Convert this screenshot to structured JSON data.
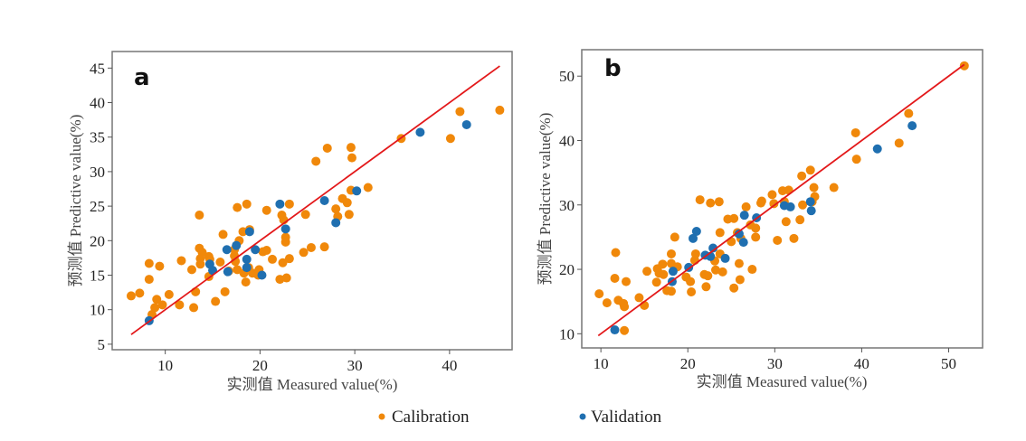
{
  "colors": {
    "calibration": "#f0880a",
    "validation": "#1f6fb0",
    "fit_line": "#e3181a",
    "frame": "#777777"
  },
  "legend": {
    "items": [
      {
        "label": "Calibration",
        "color": "#f0880a"
      },
      {
        "label": "Validation",
        "color": "#1f6fb0"
      }
    ]
  },
  "chart_data": [
    {
      "type": "scatter",
      "panel": "a",
      "xlabel": "实测值 Measured value(%)",
      "ylabel": "预测值 Predictive value(%)",
      "xlim": [
        4.4,
        46.6
      ],
      "ylim": [
        4.2,
        47.4
      ],
      "xticks": [
        10,
        20,
        30,
        40
      ],
      "yticks": [
        5,
        10,
        15,
        20,
        25,
        30,
        35,
        40,
        45
      ],
      "grid": false,
      "fit_line": [
        [
          6.4,
          6.4
        ],
        [
          45.3,
          45.3
        ]
      ],
      "series": [
        {
          "name": "Calibration",
          "points": [
            [
              6.4,
              12.0
            ],
            [
              7.3,
              12.4
            ],
            [
              8.3,
              16.7
            ],
            [
              8.3,
              14.4
            ],
            [
              9.4,
              16.3
            ],
            [
              9.1,
              11.5
            ],
            [
              8.9,
              10.3
            ],
            [
              9.7,
              10.7
            ],
            [
              8.6,
              9.3
            ],
            [
              10.4,
              12.2
            ],
            [
              11.5,
              10.7
            ],
            [
              11.7,
              17.1
            ],
            [
              12.8,
              15.8
            ],
            [
              13.2,
              12.6
            ],
            [
              13.0,
              10.3
            ],
            [
              13.6,
              23.7
            ],
            [
              13.6,
              18.9
            ],
            [
              13.7,
              17.4
            ],
            [
              13.7,
              16.6
            ],
            [
              13.9,
              18.3
            ],
            [
              14.6,
              17.7
            ],
            [
              14.7,
              17.3
            ],
            [
              14.6,
              14.8
            ],
            [
              15.3,
              11.2
            ],
            [
              15.8,
              16.9
            ],
            [
              16.1,
              20.9
            ],
            [
              16.3,
              12.6
            ],
            [
              16.7,
              15.6
            ],
            [
              17.3,
              18.7
            ],
            [
              17.3,
              17.8
            ],
            [
              17.4,
              17.0
            ],
            [
              17.6,
              24.8
            ],
            [
              17.6,
              15.8
            ],
            [
              17.8,
              20.0
            ],
            [
              18.2,
              21.3
            ],
            [
              18.3,
              15.3
            ],
            [
              18.6,
              25.3
            ],
            [
              18.5,
              14.0
            ],
            [
              18.9,
              21.6
            ],
            [
              18.8,
              16.1
            ],
            [
              19.2,
              15.3
            ],
            [
              19.8,
              15.0
            ],
            [
              19.9,
              15.8
            ],
            [
              20.3,
              18.4
            ],
            [
              20.7,
              18.6
            ],
            [
              20.7,
              24.4
            ],
            [
              21.3,
              17.3
            ],
            [
              22.1,
              14.4
            ],
            [
              22.3,
              23.7
            ],
            [
              22.4,
              16.8
            ],
            [
              22.5,
              23.0
            ],
            [
              22.7,
              20.5
            ],
            [
              22.7,
              19.8
            ],
            [
              22.8,
              14.6
            ],
            [
              23.1,
              25.3
            ],
            [
              23.1,
              17.4
            ],
            [
              24.6,
              18.3
            ],
            [
              24.8,
              23.8
            ],
            [
              25.4,
              19.0
            ],
            [
              25.9,
              31.5
            ],
            [
              26.8,
              19.1
            ],
            [
              27.1,
              33.4
            ],
            [
              28.0,
              24.6
            ],
            [
              28.2,
              23.5
            ],
            [
              28.7,
              26.1
            ],
            [
              29.2,
              25.5
            ],
            [
              29.4,
              23.8
            ],
            [
              29.6,
              27.3
            ],
            [
              29.6,
              33.5
            ],
            [
              29.7,
              32.0
            ],
            [
              31.4,
              27.7
            ],
            [
              34.9,
              34.8
            ],
            [
              40.1,
              34.8
            ],
            [
              41.1,
              38.7
            ],
            [
              45.3,
              38.9
            ]
          ]
        },
        {
          "name": "Validation",
          "points": [
            [
              8.3,
              8.4
            ],
            [
              14.7,
              16.6
            ],
            [
              15.0,
              15.7
            ],
            [
              16.5,
              18.7
            ],
            [
              16.6,
              15.5
            ],
            [
              17.5,
              19.3
            ],
            [
              18.6,
              17.3
            ],
            [
              18.6,
              16.1
            ],
            [
              18.9,
              21.3
            ],
            [
              19.5,
              18.7
            ],
            [
              20.2,
              15.0
            ],
            [
              22.1,
              25.3
            ],
            [
              22.7,
              21.7
            ],
            [
              26.8,
              25.8
            ],
            [
              28.0,
              22.6
            ],
            [
              30.2,
              27.2
            ],
            [
              36.9,
              35.7
            ],
            [
              41.8,
              36.8
            ]
          ]
        }
      ]
    },
    {
      "type": "scatter",
      "panel": "b",
      "xlabel": "实测值 Measured value(%)",
      "ylabel": "预测值 Predictive value(%)",
      "xlim": [
        7.8,
        53.9
      ],
      "ylim": [
        7.8,
        54.1
      ],
      "xticks": [
        10,
        20,
        30,
        40,
        50
      ],
      "yticks": [
        10,
        20,
        30,
        40,
        50
      ],
      "grid": false,
      "fit_line": [
        [
          9.7,
          9.7
        ],
        [
          51.8,
          51.8
        ]
      ],
      "series": [
        {
          "name": "Calibration",
          "points": [
            [
              9.8,
              16.2
            ],
            [
              10.7,
              14.8
            ],
            [
              11.7,
              22.6
            ],
            [
              11.6,
              18.6
            ],
            [
              12.0,
              15.2
            ],
            [
              12.6,
              14.7
            ],
            [
              12.7,
              14.2
            ],
            [
              12.9,
              18.1
            ],
            [
              12.7,
              10.5
            ],
            [
              14.4,
              15.6
            ],
            [
              15.0,
              14.4
            ],
            [
              15.3,
              19.7
            ],
            [
              16.4,
              18.0
            ],
            [
              16.5,
              20.1
            ],
            [
              16.7,
              19.4
            ],
            [
              17.1,
              20.8
            ],
            [
              17.2,
              19.2
            ],
            [
              17.6,
              16.7
            ],
            [
              18.1,
              22.4
            ],
            [
              18.1,
              20.9
            ],
            [
              18.1,
              16.6
            ],
            [
              18.5,
              25.0
            ],
            [
              18.8,
              20.4
            ],
            [
              19.8,
              18.8
            ],
            [
              20.3,
              18.1
            ],
            [
              20.4,
              16.5
            ],
            [
              20.8,
              21.4
            ],
            [
              20.9,
              22.4
            ],
            [
              21.4,
              30.8
            ],
            [
              21.9,
              19.2
            ],
            [
              22.1,
              17.3
            ],
            [
              22.3,
              19.0
            ],
            [
              22.6,
              30.3
            ],
            [
              23.1,
              21.3
            ],
            [
              23.2,
              19.9
            ],
            [
              23.6,
              30.5
            ],
            [
              23.7,
              25.7
            ],
            [
              23.7,
              22.4
            ],
            [
              24.0,
              19.6
            ],
            [
              24.6,
              27.8
            ],
            [
              25.0,
              24.3
            ],
            [
              25.3,
              27.9
            ],
            [
              25.3,
              17.1
            ],
            [
              25.7,
              25.7
            ],
            [
              25.9,
              20.9
            ],
            [
              26.0,
              18.4
            ],
            [
              26.1,
              24.8
            ],
            [
              26.7,
              29.7
            ],
            [
              27.2,
              26.9
            ],
            [
              27.4,
              20.0
            ],
            [
              27.8,
              26.4
            ],
            [
              27.8,
              25.0
            ],
            [
              28.4,
              30.3
            ],
            [
              28.5,
              30.6
            ],
            [
              29.7,
              31.6
            ],
            [
              29.9,
              30.2
            ],
            [
              30.3,
              24.5
            ],
            [
              30.9,
              32.2
            ],
            [
              31.1,
              30.5
            ],
            [
              31.3,
              27.4
            ],
            [
              31.6,
              32.3
            ],
            [
              32.2,
              24.8
            ],
            [
              32.9,
              27.7
            ],
            [
              33.1,
              34.5
            ],
            [
              33.2,
              30.0
            ],
            [
              34.1,
              35.4
            ],
            [
              34.3,
              30.5
            ],
            [
              34.5,
              32.7
            ],
            [
              34.6,
              31.3
            ],
            [
              36.8,
              32.7
            ],
            [
              39.3,
              41.2
            ],
            [
              39.4,
              37.1
            ],
            [
              44.3,
              39.6
            ],
            [
              45.4,
              44.2
            ],
            [
              51.8,
              51.6
            ]
          ]
        },
        {
          "name": "Validation",
          "points": [
            [
              11.6,
              10.6
            ],
            [
              18.2,
              18.1
            ],
            [
              18.3,
              19.7
            ],
            [
              20.1,
              20.3
            ],
            [
              20.6,
              24.8
            ],
            [
              21.0,
              25.9
            ],
            [
              22.0,
              22.2
            ],
            [
              22.6,
              22.0
            ],
            [
              22.9,
              23.3
            ],
            [
              24.3,
              21.7
            ],
            [
              25.9,
              25.5
            ],
            [
              26.4,
              24.2
            ],
            [
              26.5,
              28.4
            ],
            [
              27.9,
              28.0
            ],
            [
              31.1,
              29.9
            ],
            [
              31.8,
              29.7
            ],
            [
              34.1,
              30.5
            ],
            [
              34.2,
              29.1
            ],
            [
              41.8,
              38.7
            ],
            [
              45.8,
              42.3
            ]
          ]
        }
      ]
    }
  ]
}
